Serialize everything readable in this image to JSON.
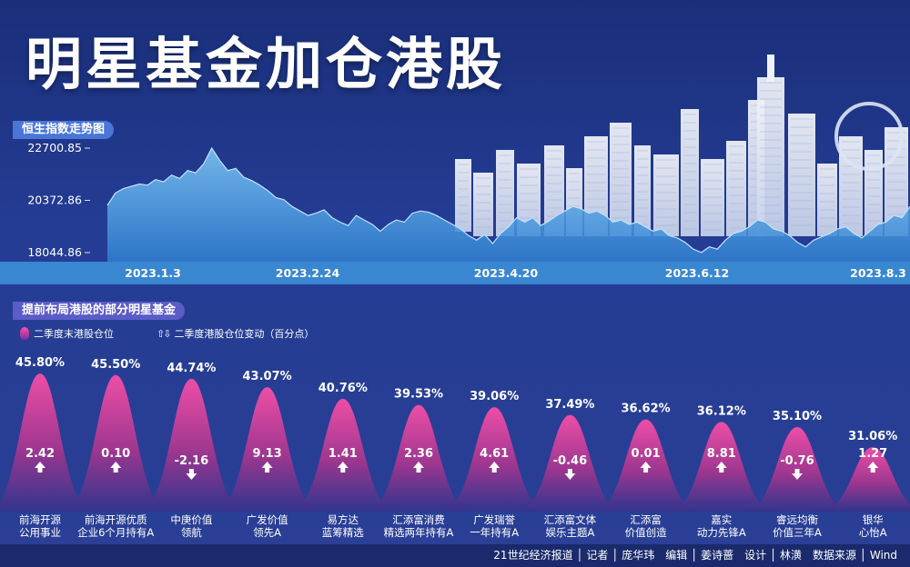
{
  "title": "明星基金加仓港股",
  "hsi_section": {
    "label": "恒生指数走势图"
  },
  "funds_section": {
    "label": "提前布局港股的部分明星基金",
    "legend_position": "二季度末港股仓位",
    "legend_change": "二季度港股仓位变动（百分点）"
  },
  "credits": "21世纪经济报道 │ 记者 │ 庞华玮　编辑 │ 姜诗蔷　设计 │ 林潢　数据来源 │ Wind",
  "colors": {
    "bg_top": "#1a2f7a",
    "bg_bottom": "#2a3f95",
    "hsi_area": "#5aa8e6",
    "hsi_band": "#3c8fd6",
    "bell_top": "#ff4fa8",
    "bell_bottom": "#3b2d8c",
    "tag_hsi": "#4a76d8",
    "tag_funds": "#5b5cc8"
  },
  "chart_data": [
    {
      "type": "area",
      "title": "恒生指数走势图",
      "y_ticks": [
        "22700.85",
        "20372.86",
        "18044.86"
      ],
      "y_tick_values": [
        22700.85,
        20372.86,
        18044.86
      ],
      "ylim": [
        18044.86,
        22700.85
      ],
      "x_tick_labels": [
        "2023.1.3",
        "2023.2.24",
        "2023.4.20",
        "2023.6.12",
        "2023.8.3"
      ],
      "grid": false,
      "series": [
        {
          "values": [
            20150,
            20700,
            20900,
            21000,
            21100,
            21050,
            21300,
            21200,
            21500,
            21350,
            21700,
            21600,
            22000,
            22700,
            22150,
            21700,
            21800,
            21400,
            21250,
            21050,
            20800,
            20500,
            20400,
            20100,
            19900,
            19700,
            19800,
            19950,
            19600,
            19400,
            19250,
            19700,
            19500,
            19300,
            19000,
            19300,
            19500,
            19400,
            19800,
            19900,
            19850,
            19700,
            19500,
            19300,
            19100,
            18800,
            18600,
            18850,
            18450,
            18900,
            19200,
            19600,
            19400,
            19600,
            19250,
            19450,
            19700,
            19900,
            20100,
            20000,
            19800,
            19900,
            19700,
            19400,
            19500,
            19300,
            19400,
            19200,
            19000,
            19100,
            18800,
            18700,
            18500,
            18200,
            18050,
            18300,
            18200,
            18600,
            18900,
            19000,
            19200,
            19500,
            19400,
            19100,
            19000,
            18800,
            18500,
            18300,
            18600,
            18750,
            18900,
            19100,
            19200,
            18900,
            18700,
            19000,
            19300,
            19400,
            19700,
            19600,
            20100
          ]
        }
      ]
    },
    {
      "type": "bar",
      "title": "提前布局港股的部分明星基金",
      "categories": [
        "前海开源\n公用事业",
        "前海开源优质\n企业6个月持有A",
        "中庚价值\n领航",
        "广发价值\n领先A",
        "易方达\n蓝筹精选",
        "汇添富消费\n精选两年持有A",
        "广发瑞誉\n一年持有A",
        "汇添富文体\n娱乐主题A",
        "汇添富\n价值创造",
        "嘉实\n动力先锋A",
        "睿远均衡\n价值三年A",
        "银华\n心怡A"
      ],
      "series": [
        {
          "name": "二季度末港股仓位",
          "values": [
            45.8,
            45.5,
            44.74,
            43.07,
            40.76,
            39.53,
            39.06,
            37.49,
            36.62,
            36.12,
            35.1,
            31.06
          ],
          "labels": [
            "45.80%",
            "45.50%",
            "44.74%",
            "43.07%",
            "40.76%",
            "39.53%",
            "39.06%",
            "37.49%",
            "36.62%",
            "36.12%",
            "35.10%",
            "31.06%"
          ]
        },
        {
          "name": "二季度港股仓位变动（百分点）",
          "values": [
            2.42,
            0.1,
            -2.16,
            9.13,
            1.41,
            2.36,
            4.61,
            -0.46,
            0.01,
            8.81,
            -0.76,
            1.27
          ],
          "labels": [
            "2.42",
            "0.10",
            "-2.16",
            "9.13",
            "1.41",
            "2.36",
            "4.61",
            "-0.46",
            "0.01",
            "8.81",
            "-0.76",
            "1.27"
          ]
        }
      ]
    }
  ]
}
